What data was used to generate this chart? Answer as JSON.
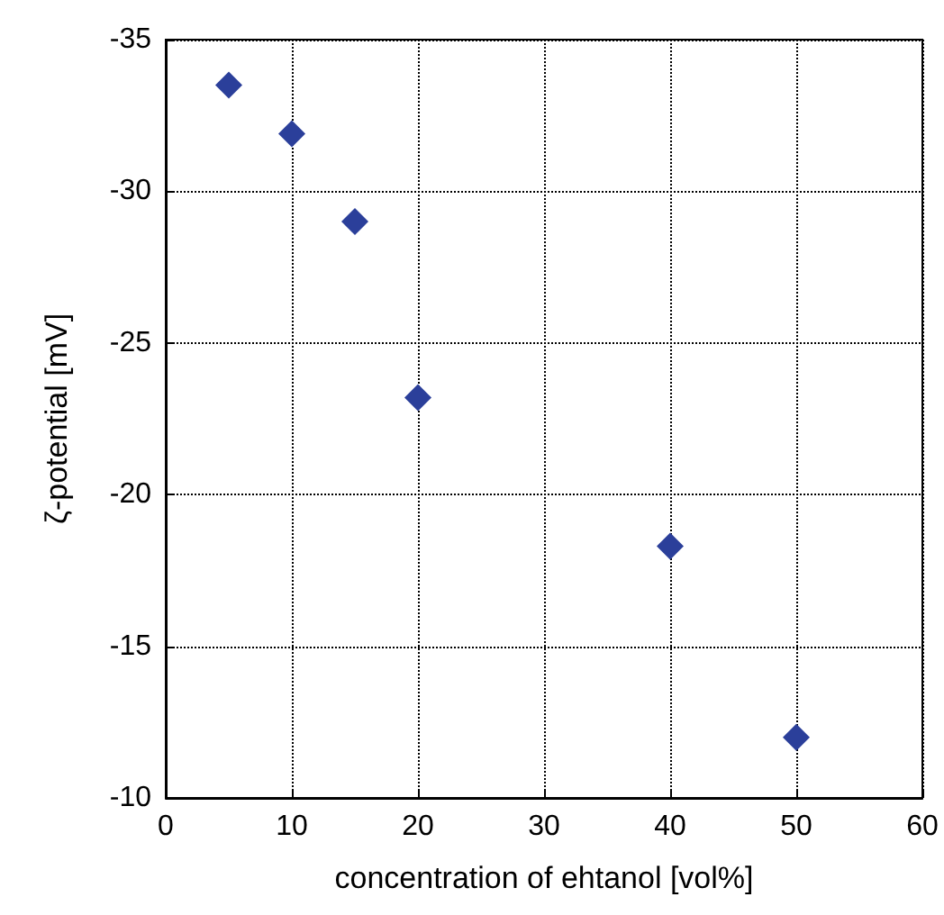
{
  "chart_data": {
    "type": "scatter",
    "xlabel": "concentration of ehtanol [vol%]",
    "ylabel": "ζ-potential [mV]",
    "x": [
      5,
      10,
      15,
      20,
      40,
      50
    ],
    "series": [
      {
        "color": "#2b3f9a",
        "values": [
          -33.5,
          -31.9,
          -29.0,
          -23.2,
          -18.3,
          -12.0
        ]
      }
    ],
    "xlim": [
      0,
      60
    ],
    "xticks": [
      0,
      10,
      20,
      30,
      40,
      50,
      60
    ],
    "ylim": [
      -10,
      -35
    ],
    "yticks": [
      -10,
      -15,
      -20,
      -25,
      -30,
      -35
    ],
    "grid": true,
    "marker": "diamond"
  }
}
